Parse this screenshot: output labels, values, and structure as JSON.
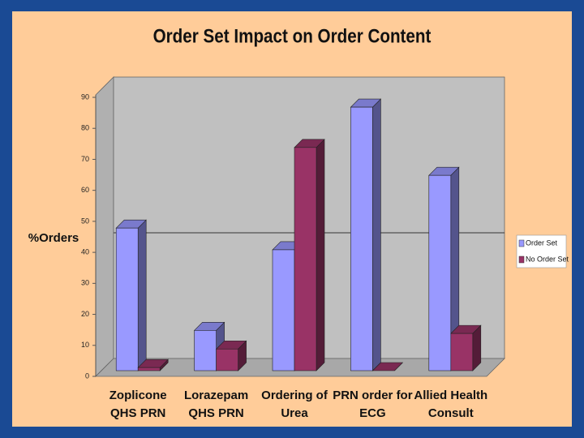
{
  "chart_data": {
    "type": "bar3d",
    "title": "Order Set Impact on Order Content",
    "ylabel": "%Orders",
    "categories": [
      [
        "Zoplicone",
        "QHS PRN"
      ],
      [
        "Lorazepam",
        "QHS PRN"
      ],
      [
        "Ordering of",
        "Urea"
      ],
      [
        "PRN order for",
        "ECG"
      ],
      [
        "Allied Health",
        "Consult"
      ]
    ],
    "series": [
      {
        "name": "Order Set",
        "color": "#9999ff",
        "values": [
          46,
          13,
          39,
          85,
          63
        ]
      },
      {
        "name": "No Order Set",
        "color": "#993366",
        "values": [
          1,
          7,
          72,
          0,
          12
        ]
      }
    ],
    "ylim": [
      0,
      90
    ],
    "yticks": [
      0,
      10,
      20,
      30,
      40,
      50,
      60,
      70,
      80,
      90
    ],
    "legend": "right"
  }
}
